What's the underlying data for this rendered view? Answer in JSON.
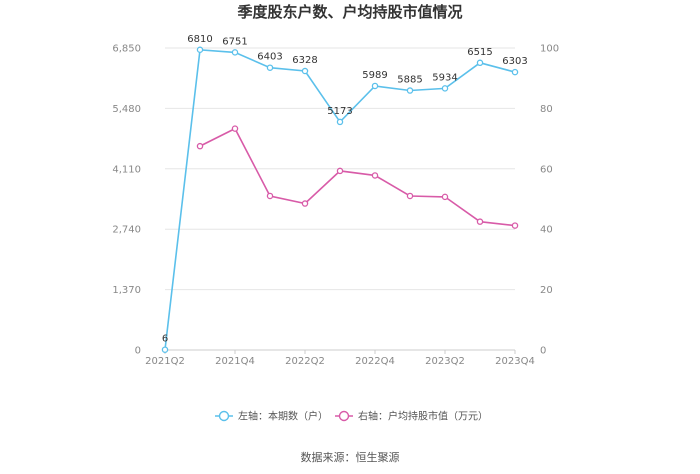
{
  "colors": {
    "series1": "#5bc0eb",
    "series2": "#d85ba8",
    "grid": "#e6e6e6",
    "axis": "#cccccc"
  },
  "source": "数据来源：恒生聚源",
  "chart_data": {
    "type": "line",
    "title": "季度股东户数、户均持股市值情况",
    "x": [
      "2021Q2",
      "2021Q3",
      "2021Q4",
      "2022Q1",
      "2022Q2",
      "2022Q3",
      "2022Q4",
      "2023Q1",
      "2023Q2",
      "2023Q3",
      "2023Q4"
    ],
    "x_tick_labels": [
      "2021Q2",
      "2021Q4",
      "2022Q2",
      "2022Q4",
      "2023Q2",
      "2023Q4"
    ],
    "left_axis": {
      "ylim": [
        0,
        6850
      ],
      "ticks": [
        "0",
        "1,370",
        "2,740",
        "4,110",
        "5,480",
        "6,850"
      ],
      "tick_values": [
        0,
        1370,
        2740,
        4110,
        5480,
        6850
      ]
    },
    "right_axis": {
      "ylim": [
        0,
        100
      ],
      "ticks": [
        "0",
        "20",
        "40",
        "60",
        "80",
        "100"
      ],
      "tick_values": [
        0,
        20,
        40,
        60,
        80,
        100
      ]
    },
    "grid": true,
    "legend_position": "bottom",
    "series": [
      {
        "name": "左轴：本期数（户）",
        "axis": "left",
        "values": [
          6,
          6810,
          6751,
          6403,
          6328,
          5173,
          5989,
          5885,
          5934,
          6515,
          6303
        ],
        "labels": [
          "6",
          "6810",
          "6751",
          "6403",
          "6328",
          "5173",
          "5989",
          "5885",
          "5934",
          "6515",
          "6303"
        ]
      },
      {
        "name": "右轴：户均持股市值（万元）",
        "axis": "right",
        "values": [
          null,
          67.5,
          73.3,
          51.0,
          48.5,
          59.3,
          57.8,
          51.0,
          50.7,
          42.5,
          41.2
        ]
      }
    ]
  }
}
